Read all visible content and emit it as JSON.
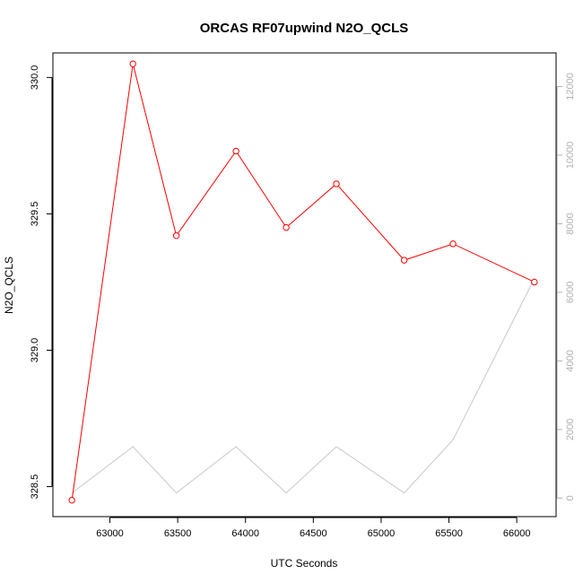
{
  "chart_data": {
    "type": "line",
    "title": "ORCAS RF07upwind N2O_QCLS",
    "xlabel": "UTC Seconds",
    "ylabel": "N2O_QCLS",
    "xlim": [
      62580,
      66290
    ],
    "ylim": [
      328.39,
      330.09
    ],
    "y2lim": [
      -540,
      12980
    ],
    "x_ticks": [
      63000,
      63500,
      64000,
      64500,
      65000,
      65500,
      66000
    ],
    "y_ticks": [
      328.5,
      329.0,
      329.5,
      330.0
    ],
    "y2_ticks": [
      0,
      2000,
      4000,
      6000,
      8000,
      10000,
      12000
    ],
    "x_tick_labels": [
      "63000",
      "63500",
      "64000",
      "64500",
      "65000",
      "65500",
      "66000"
    ],
    "y_tick_labels": [
      "328.5",
      "329.0",
      "329.5",
      "330.0"
    ],
    "y2_tick_labels": [
      "0",
      "2000",
      "4000",
      "6000",
      "8000",
      "10000",
      "12000"
    ],
    "series": [
      {
        "axis": "left",
        "color": "#ff0000",
        "markers": true,
        "x": [
          62720,
          63170,
          63490,
          63930,
          64300,
          64670,
          65170,
          65530,
          66130
        ],
        "values": [
          328.45,
          330.05,
          329.42,
          329.73,
          329.45,
          329.61,
          329.33,
          329.39,
          329.25
        ]
      },
      {
        "axis": "right",
        "color": "#c8c8c8",
        "markers": false,
        "x": [
          62720,
          63170,
          63490,
          63930,
          64300,
          64670,
          65170,
          65530,
          66130
        ],
        "values": [
          150,
          1500,
          150,
          1500,
          150,
          1500,
          150,
          1700,
          6400
        ]
      }
    ],
    "grid": false,
    "legend": "none"
  }
}
